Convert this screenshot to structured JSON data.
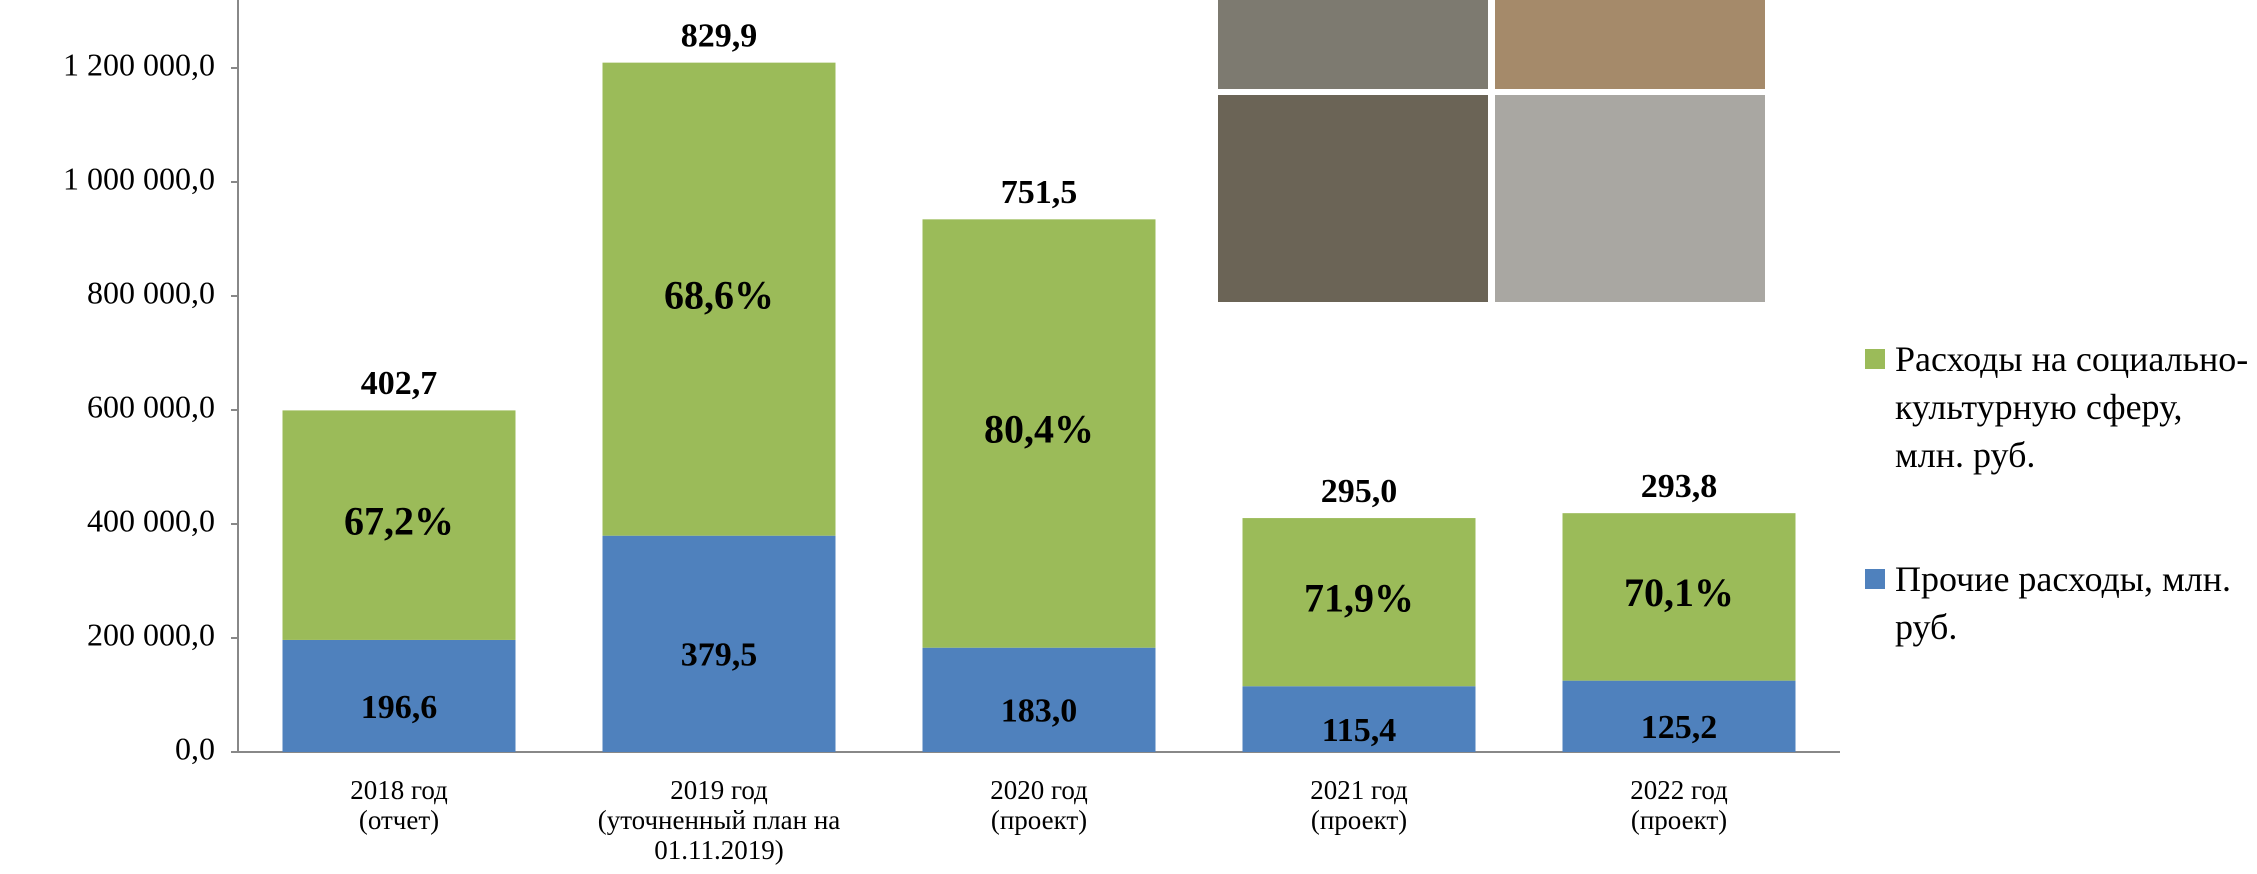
{
  "chart_data": {
    "type": "stacked_bar",
    "categories": [
      "2018 год\n(отчет)",
      "2019 год\n(уточненный план на\n01.11.2019)",
      "2020 год\n(проект)",
      "2021 год\n(проект)",
      "2022 год\n(проект)"
    ],
    "series": [
      {
        "name": "Прочие расходы, млн. руб.",
        "color": "#4f81bd",
        "values": [
          196600,
          379500,
          183000,
          115400,
          125200
        ],
        "value_labels": [
          "196,6",
          "379,5",
          "183,0",
          "115,4",
          "125,2"
        ]
      },
      {
        "name": "Расходы на социально-культурную сферу, млн. руб.",
        "color": "#9bbb59",
        "values": [
          402700,
          829900,
          751500,
          295000,
          293800
        ],
        "value_labels": [
          "402,7",
          "829,9",
          "751,5",
          "295,0",
          "293,8"
        ],
        "share_labels": [
          "67,2%",
          "68,6%",
          "80,4%",
          "71,9%",
          "70,1%"
        ]
      }
    ],
    "ylim": [
      0,
      1300000
    ],
    "yticks": [
      {
        "value": 0,
        "label": "0,0"
      },
      {
        "value": 200000,
        "label": "200 000,0"
      },
      {
        "value": 400000,
        "label": "400 000,0"
      },
      {
        "value": 600000,
        "label": "600 000,0"
      },
      {
        "value": 800000,
        "label": "800 000,0"
      },
      {
        "value": 1000000,
        "label": "1 000 000,0"
      },
      {
        "value": 1200000,
        "label": "1 200 000,0"
      }
    ],
    "legend": "right"
  }
}
